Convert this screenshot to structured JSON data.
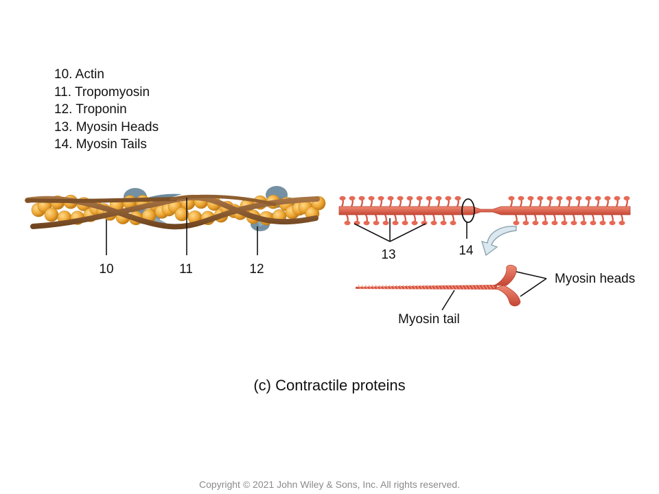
{
  "legend": [
    "10. Actin",
    "11. Tropomyosin",
    "12. Troponin",
    "13. Myosin Heads",
    "14. Myosin Tails"
  ],
  "labels": {
    "actin": "10",
    "tropomyosin": "11",
    "troponin": "12",
    "myosin_heads_num": "13",
    "myosin_tails_num": "14",
    "myosin_heads": "Myosin heads",
    "myosin_tail": "Myosin tail"
  },
  "caption": "(c) Contractile proteins",
  "copyright": "Copyright © 2021 John Wiley & Sons, Inc. All rights reserved.",
  "colors": {
    "actin": "#f0a830",
    "tropomyosin": "#8a5a2b",
    "troponin": "#6f8ea0",
    "myosin": "#d95a48",
    "arrow": "#dbe8ef"
  }
}
